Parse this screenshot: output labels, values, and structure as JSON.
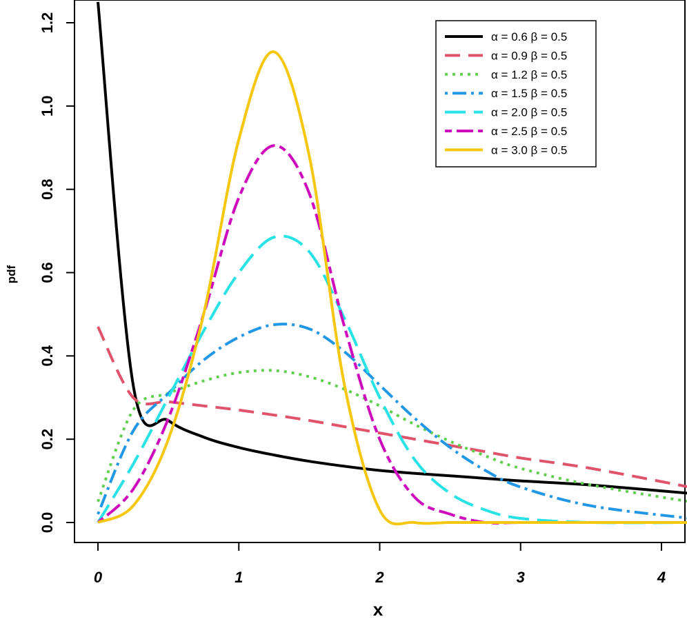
{
  "chart_data": {
    "type": "line",
    "title": "",
    "xlabel": "x",
    "ylabel": "pdf",
    "xlim": [
      -0.05,
      4.2
    ],
    "ylim": [
      -0.05,
      1.25
    ],
    "x_ticks": [
      0,
      1,
      2,
      3,
      4
    ],
    "y_ticks": [
      0.0,
      0.2,
      0.4,
      0.6,
      0.8,
      1.0,
      1.2
    ],
    "x_tick_labels": [
      "0",
      "1",
      "2",
      "3",
      "4"
    ],
    "y_tick_labels": [
      "0.0",
      "0.2",
      "0.4",
      "0.6",
      "0.8",
      "1.0",
      "1.2"
    ],
    "legend_position": "top-right",
    "series": [
      {
        "name": "α = 0.6  β = 0.5",
        "alpha": 0.6,
        "beta": 0.5,
        "color": "#000000",
        "dash": "solid"
      },
      {
        "name": "α = 0.9  β = 0.5",
        "alpha": 0.9,
        "beta": 0.5,
        "color": "#DF536B",
        "dash": "dashed"
      },
      {
        "name": "α = 1.2  β = 0.5",
        "alpha": 1.2,
        "beta": 0.5,
        "color": "#61D04F",
        "dash": "dotted"
      },
      {
        "name": "α = 1.5  β = 0.5",
        "alpha": 1.5,
        "beta": 0.5,
        "color": "#2297E6",
        "dash": "dotdash"
      },
      {
        "name": "α = 2.0  β = 0.5",
        "alpha": 2.0,
        "beta": 0.5,
        "color": "#28E2E5",
        "dash": "longdash"
      },
      {
        "name": "α = 2.5  β = 0.5",
        "alpha": 2.5,
        "beta": 0.5,
        "color": "#CD0BBC",
        "dash": "twodash"
      },
      {
        "name": "α = 3.0  β = 0.5",
        "alpha": 3.0,
        "beta": 0.5,
        "color": "#F5C710",
        "dash": "solid"
      }
    ],
    "anchor_points": {
      "x": [
        0,
        0.25,
        0.5,
        0.75,
        1.0,
        1.25,
        1.5,
        1.75,
        2.0,
        2.25,
        2.5,
        2.75,
        3.0,
        3.5,
        4.2
      ],
      "α = 0.6  β = 0.5": [
        1.25,
        0.33,
        0.245,
        0.205,
        0.18,
        0.162,
        0.147,
        0.135,
        0.125,
        0.118,
        0.112,
        0.106,
        0.1,
        0.09,
        0.07
      ],
      "α = 0.9  β = 0.5": [
        0.47,
        0.3,
        0.29,
        0.28,
        0.27,
        0.258,
        0.245,
        0.23,
        0.215,
        0.2,
        0.185,
        0.17,
        0.155,
        0.13,
        0.085
      ],
      "α = 1.2  β = 0.5": [
        0.05,
        0.27,
        0.31,
        0.34,
        0.36,
        0.365,
        0.35,
        0.32,
        0.28,
        0.235,
        0.195,
        0.16,
        0.13,
        0.09,
        0.05
      ],
      "α = 1.5  β = 0.5": [
        0.02,
        0.22,
        0.31,
        0.39,
        0.445,
        0.475,
        0.465,
        0.41,
        0.33,
        0.25,
        0.18,
        0.125,
        0.085,
        0.04,
        0.01
      ],
      "α = 2.0  β = 0.5": [
        0.0,
        0.14,
        0.3,
        0.46,
        0.6,
        0.685,
        0.65,
        0.49,
        0.3,
        0.15,
        0.07,
        0.03,
        0.01,
        0.0,
        0.0
      ],
      "α = 2.5  β = 0.5": [
        0.0,
        0.08,
        0.25,
        0.5,
        0.78,
        0.905,
        0.79,
        0.47,
        0.2,
        0.06,
        0.02,
        0.0,
        0.0,
        0.0,
        0.0
      ],
      "α = 3.0  β = 0.5": [
        0.0,
        0.04,
        0.2,
        0.5,
        0.92,
        1.13,
        0.88,
        0.33,
        0.03,
        0.0,
        0.0,
        0.0,
        0.0,
        0.0,
        0.0
      ]
    }
  }
}
